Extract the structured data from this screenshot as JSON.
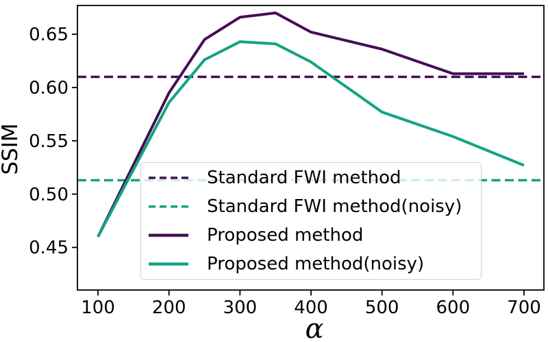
{
  "chart_data": {
    "type": "line",
    "title": "",
    "xlabel": "α",
    "ylabel": "SSIM",
    "xlim": [
      71,
      728
    ],
    "ylim": [
      0.41,
      0.677
    ],
    "grid": false,
    "legend_position": "lower center",
    "x_ticks": [
      100,
      200,
      300,
      400,
      500,
      600,
      700
    ],
    "x_tick_labels": [
      "100",
      "200",
      "300",
      "400",
      "500",
      "600",
      "700"
    ],
    "y_ticks": [
      0.45,
      0.5,
      0.55,
      0.6,
      0.65
    ],
    "y_tick_labels": [
      "0.45",
      "0.50",
      "0.55",
      "0.60",
      "0.65"
    ],
    "x": [
      100,
      200,
      250,
      300,
      350,
      400,
      500,
      600,
      700
    ],
    "series": [
      {
        "name": "Standard FWI method",
        "kind": "hline",
        "value": 0.61,
        "color": "#440f54",
        "style": "dashed"
      },
      {
        "name": "Standard FWI method(noisy)",
        "kind": "hline",
        "value": 0.513,
        "color": "#13a384",
        "style": "dashed"
      },
      {
        "name": "Proposed method",
        "kind": "line",
        "values": [
          0.46,
          0.595,
          0.645,
          0.666,
          0.67,
          0.652,
          0.636,
          0.613,
          0.613
        ],
        "color": "#440f54",
        "style": "solid"
      },
      {
        "name": "Proposed method(noisy)",
        "kind": "line",
        "values": [
          0.46,
          0.586,
          0.626,
          0.643,
          0.641,
          0.624,
          0.577,
          0.554,
          0.527
        ],
        "color": "#13a384",
        "style": "solid"
      }
    ]
  }
}
